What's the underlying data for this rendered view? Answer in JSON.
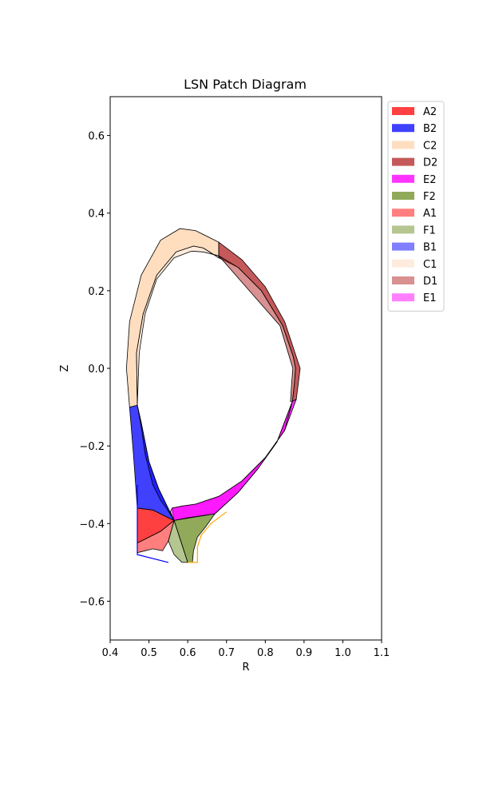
{
  "chart_data": {
    "type": "area",
    "title": "LSN Patch Diagram",
    "xlabel": "R",
    "ylabel": "Z",
    "xlim": [
      0.4,
      1.1
    ],
    "ylim": [
      -0.7,
      0.7
    ],
    "xticks": [
      0.4,
      0.5,
      0.6,
      0.7,
      0.8,
      0.9,
      1.0,
      1.1
    ],
    "yticks": [
      -0.6,
      -0.4,
      -0.2,
      0.0,
      0.2,
      0.4,
      0.6
    ],
    "xtick_labels": [
      "0.4",
      "0.5",
      "0.6",
      "0.7",
      "0.8",
      "0.9",
      "1.0",
      "1.1"
    ],
    "ytick_labels": [
      "−0.6",
      "−0.4",
      "−0.2",
      "0.0",
      "0.2",
      "0.4",
      "0.6"
    ],
    "grid": false,
    "legend_position": "outside-upper-right",
    "patches": [
      {
        "name": "A2",
        "color": "#ff0000",
        "alpha": 0.75,
        "points": [
          [
            0.47,
            -0.36
          ],
          [
            0.51,
            -0.365
          ],
          [
            0.55,
            -0.385
          ],
          [
            0.565,
            -0.392
          ],
          [
            0.53,
            -0.42
          ],
          [
            0.47,
            -0.45
          ],
          [
            0.47,
            -0.4
          ]
        ]
      },
      {
        "name": "B2",
        "color": "#0000ff",
        "alpha": 0.75,
        "points": [
          [
            0.45,
            -0.1
          ],
          [
            0.47,
            -0.095
          ],
          [
            0.48,
            -0.14
          ],
          [
            0.5,
            -0.24
          ],
          [
            0.525,
            -0.31
          ],
          [
            0.565,
            -0.392
          ],
          [
            0.55,
            -0.385
          ],
          [
            0.51,
            -0.365
          ],
          [
            0.47,
            -0.36
          ],
          [
            0.46,
            -0.22
          ]
        ]
      },
      {
        "name": "C2",
        "color": "#ffdab9",
        "alpha": 0.9,
        "points": [
          [
            0.45,
            -0.1
          ],
          [
            0.442,
            0.0
          ],
          [
            0.45,
            0.12
          ],
          [
            0.48,
            0.24
          ],
          [
            0.53,
            0.33
          ],
          [
            0.58,
            0.36
          ],
          [
            0.62,
            0.355
          ],
          [
            0.68,
            0.325
          ],
          [
            0.68,
            0.285
          ],
          [
            0.64,
            0.31
          ],
          [
            0.615,
            0.315
          ],
          [
            0.57,
            0.3
          ],
          [
            0.52,
            0.24
          ],
          [
            0.485,
            0.14
          ],
          [
            0.468,
            0.04
          ],
          [
            0.47,
            -0.095
          ]
        ]
      },
      {
        "name": "D2",
        "color": "#b22222",
        "alpha": 0.75,
        "points": [
          [
            0.68,
            0.325
          ],
          [
            0.74,
            0.28
          ],
          [
            0.8,
            0.21
          ],
          [
            0.85,
            0.12
          ],
          [
            0.88,
            0.03
          ],
          [
            0.89,
            0.0
          ],
          [
            0.885,
            -0.04
          ],
          [
            0.88,
            -0.08
          ],
          [
            0.87,
            -0.085
          ],
          [
            0.875,
            -0.04
          ],
          [
            0.878,
            0.0
          ],
          [
            0.872,
            0.03
          ],
          [
            0.845,
            0.11
          ],
          [
            0.79,
            0.2
          ],
          [
            0.73,
            0.26
          ],
          [
            0.68,
            0.285
          ]
        ]
      },
      {
        "name": "E2",
        "color": "#ff00ff",
        "alpha": 0.8,
        "points": [
          [
            0.88,
            -0.08
          ],
          [
            0.85,
            -0.16
          ],
          [
            0.8,
            -0.23
          ],
          [
            0.74,
            -0.29
          ],
          [
            0.68,
            -0.33
          ],
          [
            0.62,
            -0.35
          ],
          [
            0.585,
            -0.355
          ],
          [
            0.56,
            -0.36
          ],
          [
            0.565,
            -0.392
          ],
          [
            0.6,
            -0.385
          ],
          [
            0.67,
            -0.375
          ],
          [
            0.73,
            -0.32
          ],
          [
            0.78,
            -0.26
          ],
          [
            0.83,
            -0.19
          ],
          [
            0.87,
            -0.085
          ]
        ]
      },
      {
        "name": "F2",
        "color": "#6b8e23",
        "alpha": 0.75,
        "points": [
          [
            0.565,
            -0.392
          ],
          [
            0.67,
            -0.375
          ],
          [
            0.645,
            -0.41
          ],
          [
            0.625,
            -0.435
          ],
          [
            0.615,
            -0.47
          ],
          [
            0.612,
            -0.5
          ],
          [
            0.6,
            -0.5
          ]
        ]
      },
      {
        "name": "A1",
        "color": "#ff0000",
        "alpha": 0.5,
        "points": [
          [
            0.47,
            -0.45
          ],
          [
            0.53,
            -0.42
          ],
          [
            0.565,
            -0.392
          ],
          [
            0.55,
            -0.445
          ],
          [
            0.535,
            -0.47
          ],
          [
            0.51,
            -0.465
          ],
          [
            0.49,
            -0.47
          ],
          [
            0.47,
            -0.475
          ]
        ]
      },
      {
        "name": "F1",
        "color": "#6b8e23",
        "alpha": 0.5,
        "points": [
          [
            0.565,
            -0.392
          ],
          [
            0.6,
            -0.5
          ],
          [
            0.585,
            -0.5
          ],
          [
            0.565,
            -0.48
          ],
          [
            0.55,
            -0.445
          ]
        ]
      },
      {
        "name": "B1",
        "color": "#0000ff",
        "alpha": 0.5,
        "points": [
          [
            0.47,
            -0.095
          ],
          [
            0.48,
            -0.14
          ],
          [
            0.5,
            -0.24
          ],
          [
            0.525,
            -0.31
          ],
          [
            0.565,
            -0.392
          ],
          [
            0.545,
            -0.36
          ],
          [
            0.53,
            -0.34
          ],
          [
            0.51,
            -0.3
          ],
          [
            0.49,
            -0.22
          ],
          [
            0.48,
            -0.15
          ],
          [
            0.47,
            -0.095
          ]
        ]
      },
      {
        "name": "C1",
        "color": "#ffdab9",
        "alpha": 0.5,
        "points": [
          [
            0.47,
            -0.095
          ],
          [
            0.468,
            0.04
          ],
          [
            0.485,
            0.14
          ],
          [
            0.52,
            0.24
          ],
          [
            0.57,
            0.3
          ],
          [
            0.615,
            0.315
          ],
          [
            0.64,
            0.31
          ],
          [
            0.68,
            0.285
          ],
          [
            0.68,
            0.29
          ],
          [
            0.64,
            0.3
          ],
          [
            0.61,
            0.302
          ],
          [
            0.565,
            0.285
          ],
          [
            0.52,
            0.23
          ],
          [
            0.49,
            0.14
          ],
          [
            0.475,
            0.04
          ]
        ]
      },
      {
        "name": "D1",
        "color": "#b22222",
        "alpha": 0.5,
        "points": [
          [
            0.68,
            0.29
          ],
          [
            0.73,
            0.26
          ],
          [
            0.79,
            0.2
          ],
          [
            0.845,
            0.11
          ],
          [
            0.872,
            0.03
          ],
          [
            0.878,
            0.0
          ],
          [
            0.875,
            -0.04
          ],
          [
            0.87,
            -0.085
          ],
          [
            0.865,
            -0.085
          ],
          [
            0.868,
            -0.04
          ],
          [
            0.871,
            0.0
          ],
          [
            0.862,
            0.03
          ],
          [
            0.838,
            0.11
          ]
        ]
      },
      {
        "name": "E1",
        "color": "#ff00ff",
        "alpha": 0.5,
        "points": [
          [
            0.87,
            -0.085
          ],
          [
            0.83,
            -0.19
          ],
          [
            0.78,
            -0.26
          ],
          [
            0.73,
            -0.32
          ],
          [
            0.67,
            -0.375
          ],
          [
            0.6,
            -0.385
          ],
          [
            0.565,
            -0.392
          ],
          [
            0.555,
            -0.37
          ],
          [
            0.56,
            -0.36
          ],
          [
            0.585,
            -0.355
          ],
          [
            0.62,
            -0.35
          ],
          [
            0.68,
            -0.33
          ],
          [
            0.74,
            -0.29
          ],
          [
            0.8,
            -0.23
          ],
          [
            0.85,
            -0.16
          ]
        ]
      }
    ],
    "boundary_lines": [
      {
        "name": "blue-wall",
        "color": "#0000ff",
        "points": [
          [
            0.47,
            -0.3
          ],
          [
            0.47,
            -0.48
          ],
          [
            0.55,
            -0.5
          ]
        ]
      },
      {
        "name": "orange-wall",
        "color": "#ffa500",
        "points": [
          [
            0.7,
            -0.37
          ],
          [
            0.66,
            -0.4
          ],
          [
            0.635,
            -0.43
          ],
          [
            0.625,
            -0.46
          ],
          [
            0.625,
            -0.5
          ],
          [
            0.6,
            -0.5
          ]
        ]
      }
    ]
  }
}
